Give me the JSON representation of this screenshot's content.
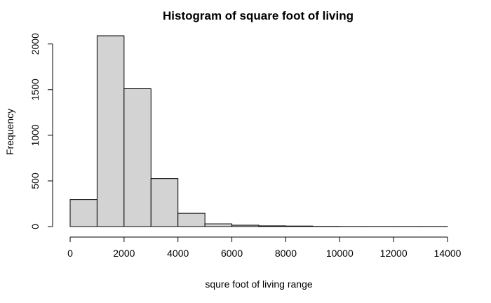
{
  "chart_data": {
    "type": "bar",
    "title": "Histogram of square foot of living",
    "xlabel": "squre foot of living range",
    "ylabel": "Frequency",
    "bins": [
      {
        "from": 0,
        "to": 1000,
        "value": 295
      },
      {
        "from": 1000,
        "to": 2000,
        "value": 2090
      },
      {
        "from": 2000,
        "to": 3000,
        "value": 1510
      },
      {
        "from": 3000,
        "to": 4000,
        "value": 525
      },
      {
        "from": 4000,
        "to": 5000,
        "value": 145
      },
      {
        "from": 5000,
        "to": 6000,
        "value": 30
      },
      {
        "from": 6000,
        "to": 7000,
        "value": 15
      },
      {
        "from": 7000,
        "to": 8000,
        "value": 8
      },
      {
        "from": 8000,
        "to": 9000,
        "value": 6
      },
      {
        "from": 9000,
        "to": 10000,
        "value": 2
      },
      {
        "from": 10000,
        "to": 11000,
        "value": 1
      },
      {
        "from": 11000,
        "to": 12000,
        "value": 1
      },
      {
        "from": 12000,
        "to": 13000,
        "value": 1
      },
      {
        "from": 13000,
        "to": 14000,
        "value": 1
      }
    ],
    "xlim": [
      0,
      14000
    ],
    "ylim": [
      0,
      2090
    ],
    "x_ticks": [
      0,
      2000,
      4000,
      6000,
      8000,
      10000,
      12000,
      14000
    ],
    "y_ticks": [
      0,
      500,
      1000,
      1500,
      2000
    ],
    "bar_color": "#d3d3d3",
    "edge_color": "#000000",
    "grid": false,
    "legend": "none"
  }
}
